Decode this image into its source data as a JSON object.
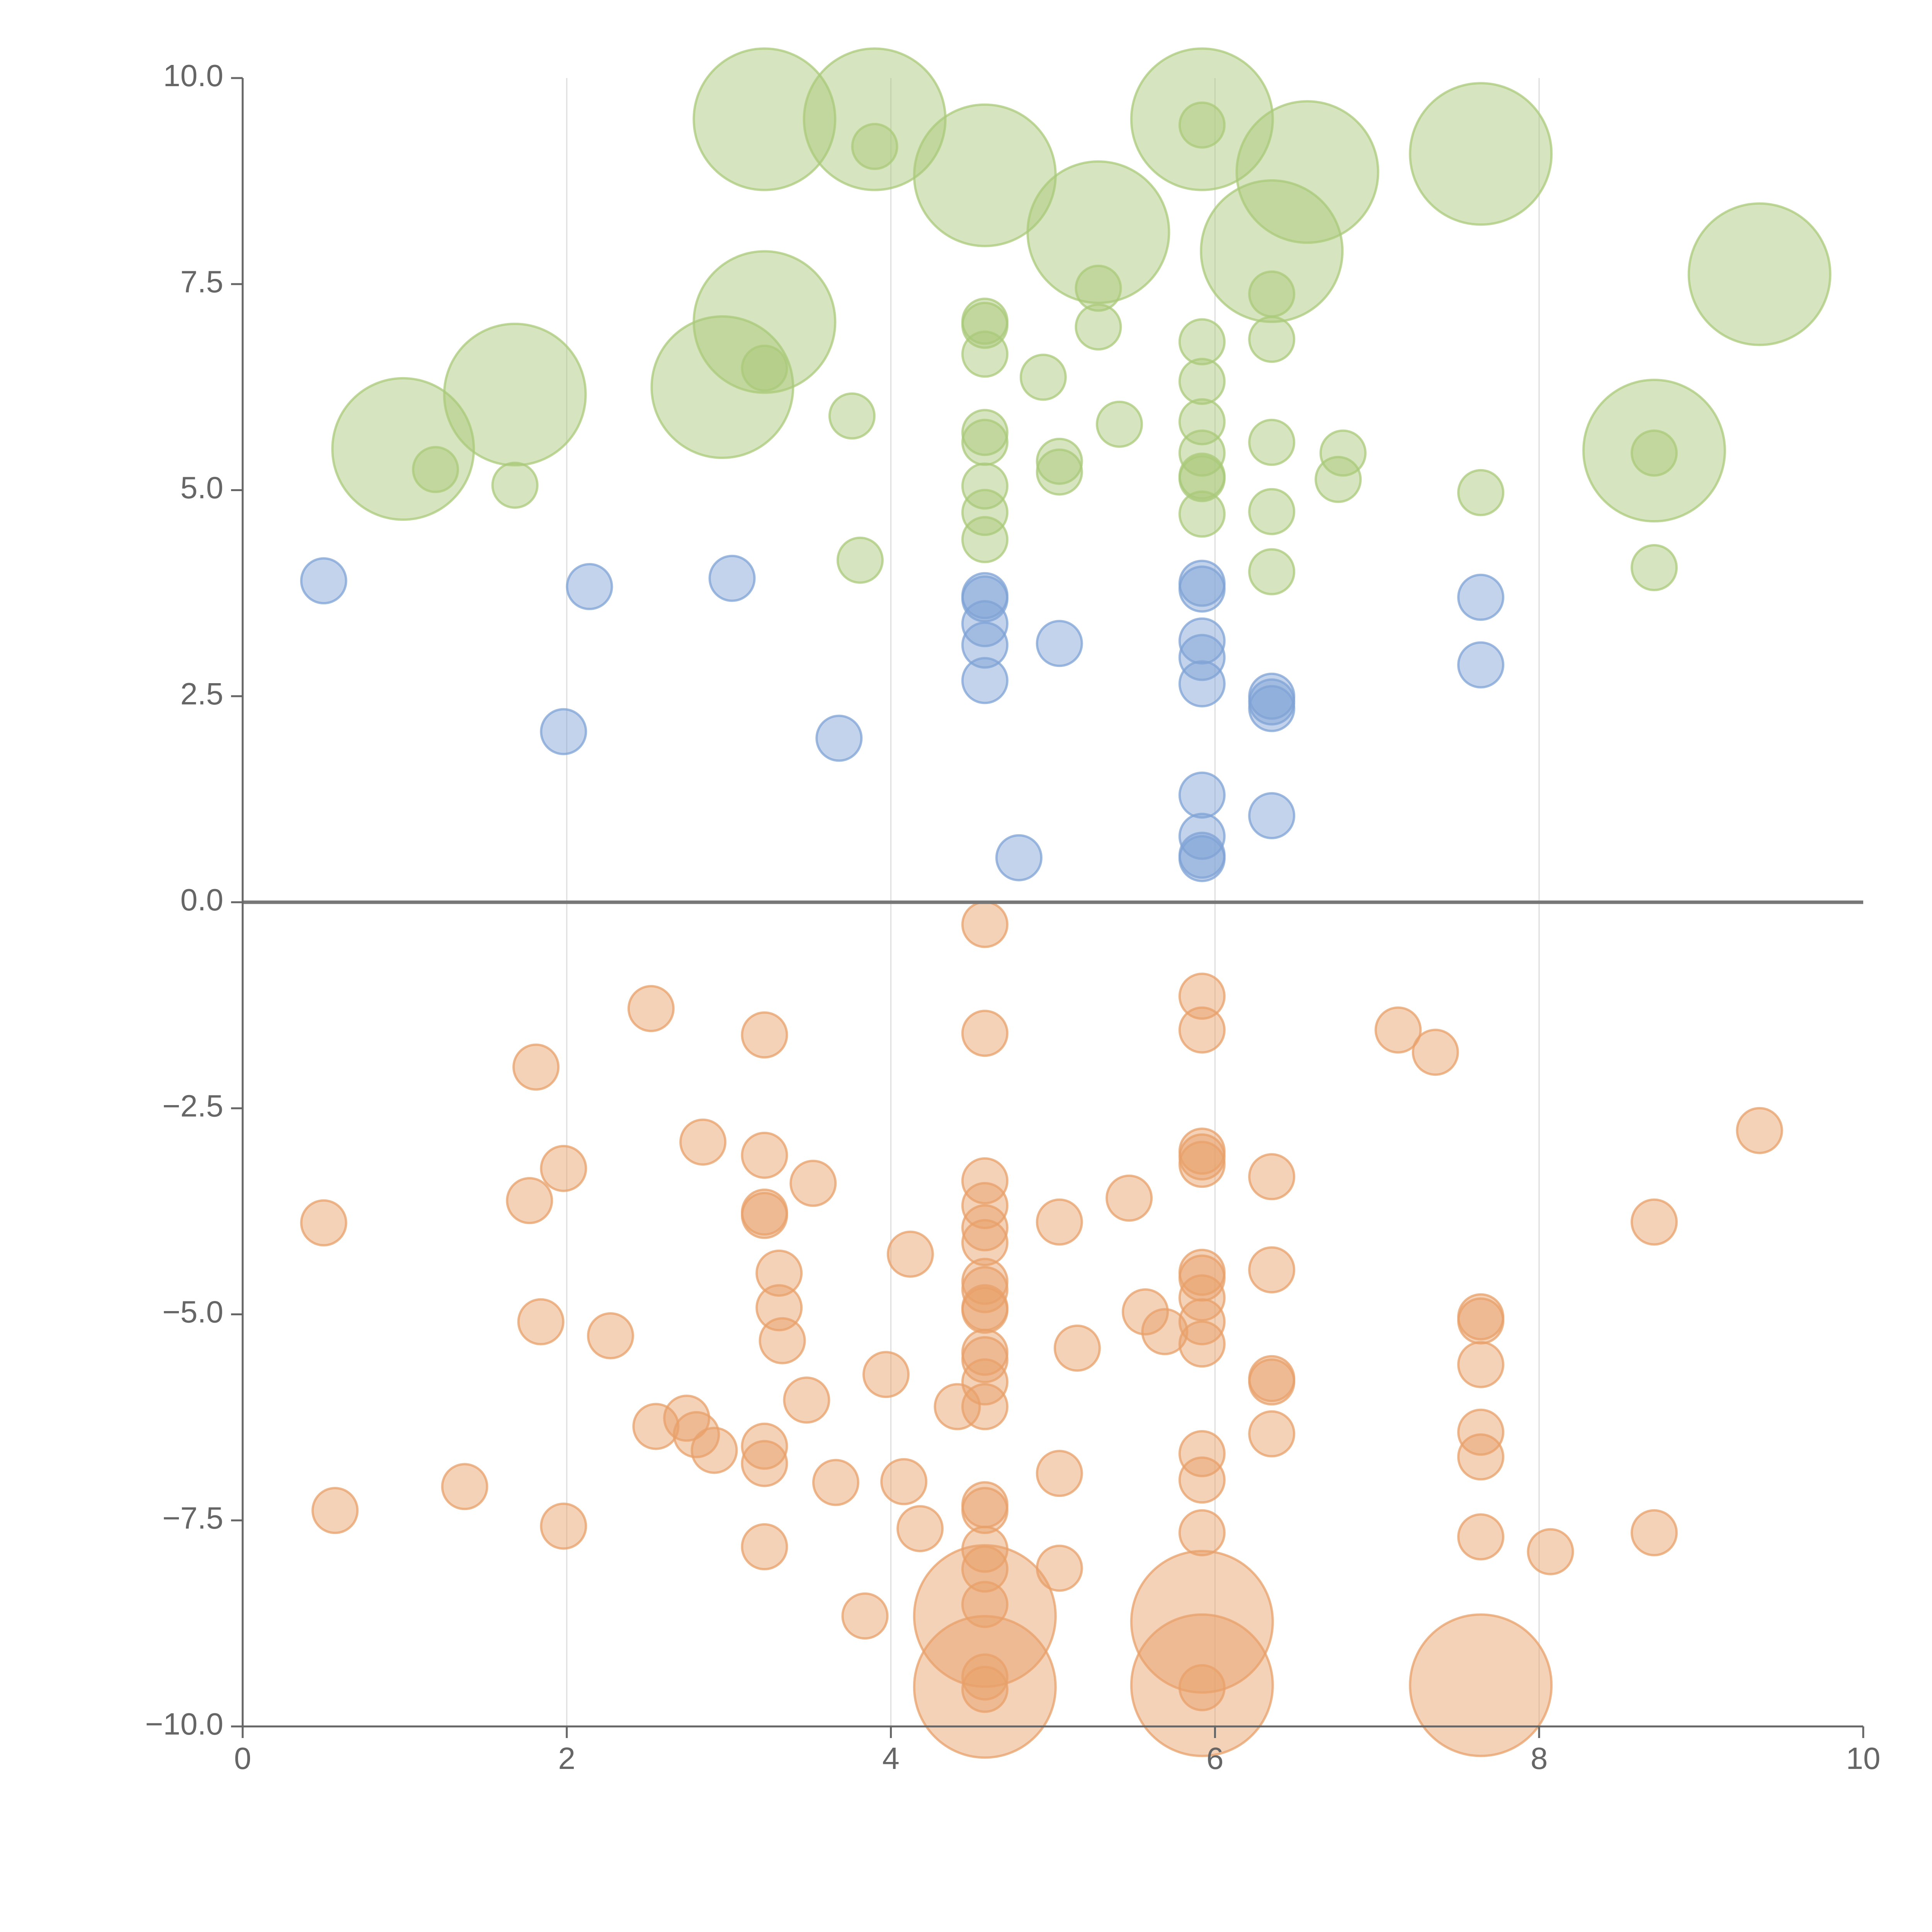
{
  "colors": {
    "blue": "#7fa3d6",
    "green": "#a9c97a",
    "orange": "#e8a06a",
    "axis": "#666666",
    "grid": "#dddddd",
    "zero_line": "#777777",
    "background": "#ffffff"
  },
  "chart_data": {
    "type": "scatter",
    "title": "",
    "xlabel": "",
    "ylabel": "",
    "xlim": [
      0,
      10
    ],
    "ylim": [
      -10,
      10
    ],
    "x_ticks": [
      "0",
      "2",
      "4",
      "6",
      "8",
      "10"
    ],
    "x_tick_values": [
      0,
      2,
      4,
      6,
      8,
      10
    ],
    "y_ticks": [
      "10.0",
      "7.5",
      "5.0",
      "2.5",
      "0.0",
      "−2.5",
      "−5.0",
      "−7.5",
      "−10.0"
    ],
    "y_tick_values": [
      10,
      7.5,
      5,
      2.5,
      0,
      -2.5,
      -5,
      -7.5,
      -10
    ],
    "grid": {
      "x": true,
      "y": false
    },
    "bubble_size": "radius",
    "series": [
      {
        "color": "blue",
        "points": [
          {
            "x": 0.5,
            "y": 3.9,
            "r": 1
          },
          {
            "x": 1.98,
            "y": 2.07,
            "r": 1
          },
          {
            "x": 2.14,
            "y": 3.83,
            "r": 1
          },
          {
            "x": 3.02,
            "y": 3.93,
            "r": 1
          },
          {
            "x": 3.68,
            "y": 1.99,
            "r": 1
          },
          {
            "x": 4.58,
            "y": 3.72,
            "r": 1
          },
          {
            "x": 4.58,
            "y": 3.68,
            "r": 1
          },
          {
            "x": 4.58,
            "y": 3.38,
            "r": 1
          },
          {
            "x": 4.58,
            "y": 3.12,
            "r": 1
          },
          {
            "x": 4.58,
            "y": 2.69,
            "r": 1
          },
          {
            "x": 4.79,
            "y": 0.54,
            "r": 1
          },
          {
            "x": 5.04,
            "y": 3.14,
            "r": 1
          },
          {
            "x": 5.92,
            "y": 3.87,
            "r": 1
          },
          {
            "x": 5.92,
            "y": 3.8,
            "r": 1
          },
          {
            "x": 5.92,
            "y": 3.17,
            "r": 1
          },
          {
            "x": 5.92,
            "y": 2.97,
            "r": 1
          },
          {
            "x": 5.92,
            "y": 2.65,
            "r": 1
          },
          {
            "x": 5.92,
            "y": 1.3,
            "r": 1
          },
          {
            "x": 5.92,
            "y": 0.8,
            "r": 1
          },
          {
            "x": 5.92,
            "y": 0.57,
            "r": 1
          },
          {
            "x": 5.92,
            "y": 0.53,
            "r": 1
          },
          {
            "x": 6.35,
            "y": 2.5,
            "r": 1
          },
          {
            "x": 6.35,
            "y": 2.43,
            "r": 1
          },
          {
            "x": 6.35,
            "y": 2.35,
            "r": 1
          },
          {
            "x": 6.35,
            "y": 1.05,
            "r": 1
          },
          {
            "x": 7.64,
            "y": 3.7,
            "r": 1
          },
          {
            "x": 7.64,
            "y": 2.88,
            "r": 1
          }
        ]
      },
      {
        "color": "green",
        "points": [
          {
            "x": 0.99,
            "y": 5.5,
            "r": 2
          },
          {
            "x": 1.19,
            "y": 5.25,
            "r": 1
          },
          {
            "x": 1.68,
            "y": 5.06,
            "r": 1
          },
          {
            "x": 1.68,
            "y": 6.16,
            "r": 2
          },
          {
            "x": 2.96,
            "y": 6.25,
            "r": 2
          },
          {
            "x": 3.22,
            "y": 9.5,
            "r": 2
          },
          {
            "x": 3.22,
            "y": 7.04,
            "r": 2
          },
          {
            "x": 3.22,
            "y": 6.48,
            "r": 1
          },
          {
            "x": 3.76,
            "y": 5.9,
            "r": 1
          },
          {
            "x": 3.81,
            "y": 4.15,
            "r": 1
          },
          {
            "x": 3.9,
            "y": 9.5,
            "r": 2
          },
          {
            "x": 3.9,
            "y": 9.17,
            "r": 1
          },
          {
            "x": 4.58,
            "y": 8.82,
            "r": 2
          },
          {
            "x": 4.58,
            "y": 7.05,
            "r": 1
          },
          {
            "x": 4.58,
            "y": 7.0,
            "r": 1
          },
          {
            "x": 4.58,
            "y": 6.65,
            "r": 1
          },
          {
            "x": 4.58,
            "y": 5.7,
            "r": 1
          },
          {
            "x": 4.58,
            "y": 5.58,
            "r": 1
          },
          {
            "x": 4.58,
            "y": 5.05,
            "r": 1
          },
          {
            "x": 4.58,
            "y": 4.73,
            "r": 1
          },
          {
            "x": 4.58,
            "y": 4.4,
            "r": 1
          },
          {
            "x": 4.94,
            "y": 6.37,
            "r": 1
          },
          {
            "x": 5.04,
            "y": 5.35,
            "r": 1
          },
          {
            "x": 5.04,
            "y": 5.22,
            "r": 1
          },
          {
            "x": 5.28,
            "y": 8.13,
            "r": 2
          },
          {
            "x": 5.28,
            "y": 7.45,
            "r": 1
          },
          {
            "x": 5.28,
            "y": 6.98,
            "r": 1
          },
          {
            "x": 5.41,
            "y": 5.8,
            "r": 1
          },
          {
            "x": 5.92,
            "y": 9.5,
            "r": 2
          },
          {
            "x": 5.92,
            "y": 9.43,
            "r": 1
          },
          {
            "x": 5.92,
            "y": 6.8,
            "r": 1
          },
          {
            "x": 5.92,
            "y": 6.32,
            "r": 1
          },
          {
            "x": 5.92,
            "y": 5.83,
            "r": 1
          },
          {
            "x": 5.92,
            "y": 5.45,
            "r": 1
          },
          {
            "x": 5.92,
            "y": 5.17,
            "r": 1
          },
          {
            "x": 5.92,
            "y": 5.14,
            "r": 1
          },
          {
            "x": 5.92,
            "y": 4.71,
            "r": 1
          },
          {
            "x": 6.35,
            "y": 7.9,
            "r": 2
          },
          {
            "x": 6.35,
            "y": 7.38,
            "r": 1
          },
          {
            "x": 6.35,
            "y": 6.83,
            "r": 1
          },
          {
            "x": 6.35,
            "y": 5.58,
            "r": 1
          },
          {
            "x": 6.35,
            "y": 4.74,
            "r": 1
          },
          {
            "x": 6.35,
            "y": 4.01,
            "r": 1
          },
          {
            "x": 6.57,
            "y": 8.86,
            "r": 2
          },
          {
            "x": 6.76,
            "y": 5.13,
            "r": 1
          },
          {
            "x": 6.79,
            "y": 5.45,
            "r": 1
          },
          {
            "x": 7.64,
            "y": 9.08,
            "r": 2
          },
          {
            "x": 7.64,
            "y": 4.97,
            "r": 1
          },
          {
            "x": 8.71,
            "y": 5.48,
            "r": 2
          },
          {
            "x": 8.71,
            "y": 5.45,
            "r": 1
          },
          {
            "x": 8.71,
            "y": 4.06,
            "r": 1
          },
          {
            "x": 9.36,
            "y": 7.62,
            "r": 2
          }
        ]
      },
      {
        "color": "orange",
        "points": [
          {
            "x": 0.5,
            "y": -3.89,
            "r": 1
          },
          {
            "x": 0.57,
            "y": -7.38,
            "r": 1
          },
          {
            "x": 1.37,
            "y": -7.09,
            "r": 1
          },
          {
            "x": 1.77,
            "y": -3.62,
            "r": 1
          },
          {
            "x": 1.81,
            "y": -2.0,
            "r": 1
          },
          {
            "x": 1.84,
            "y": -5.09,
            "r": 1
          },
          {
            "x": 1.98,
            "y": -3.23,
            "r": 1
          },
          {
            "x": 1.98,
            "y": -7.57,
            "r": 1
          },
          {
            "x": 2.27,
            "y": -5.26,
            "r": 1
          },
          {
            "x": 2.52,
            "y": -1.29,
            "r": 1
          },
          {
            "x": 2.55,
            "y": -6.36,
            "r": 1
          },
          {
            "x": 2.74,
            "y": -6.26,
            "r": 1
          },
          {
            "x": 2.8,
            "y": -6.46,
            "r": 1
          },
          {
            "x": 2.84,
            "y": -2.91,
            "r": 1
          },
          {
            "x": 2.91,
            "y": -6.65,
            "r": 1
          },
          {
            "x": 3.22,
            "y": -1.61,
            "r": 1
          },
          {
            "x": 3.22,
            "y": -3.07,
            "r": 1
          },
          {
            "x": 3.22,
            "y": -3.76,
            "r": 1
          },
          {
            "x": 3.22,
            "y": -3.8,
            "r": 1
          },
          {
            "x": 3.22,
            "y": -6.6,
            "r": 1
          },
          {
            "x": 3.22,
            "y": -6.81,
            "r": 1
          },
          {
            "x": 3.22,
            "y": -7.82,
            "r": 1
          },
          {
            "x": 3.31,
            "y": -4.5,
            "r": 1
          },
          {
            "x": 3.31,
            "y": -4.92,
            "r": 1
          },
          {
            "x": 3.33,
            "y": -5.32,
            "r": 1
          },
          {
            "x": 3.48,
            "y": -6.04,
            "r": 1
          },
          {
            "x": 3.52,
            "y": -3.41,
            "r": 1
          },
          {
            "x": 3.66,
            "y": -7.04,
            "r": 1
          },
          {
            "x": 3.84,
            "y": -8.66,
            "r": 1
          },
          {
            "x": 3.97,
            "y": -5.73,
            "r": 1
          },
          {
            "x": 4.08,
            "y": -7.03,
            "r": 1
          },
          {
            "x": 4.12,
            "y": -4.27,
            "r": 1
          },
          {
            "x": 4.18,
            "y": -7.6,
            "r": 1
          },
          {
            "x": 4.41,
            "y": -6.12,
            "r": 1
          },
          {
            "x": 4.58,
            "y": -0.27,
            "r": 1
          },
          {
            "x": 4.58,
            "y": -1.59,
            "r": 1
          },
          {
            "x": 4.58,
            "y": -3.38,
            "r": 1
          },
          {
            "x": 4.58,
            "y": -3.68,
            "r": 1
          },
          {
            "x": 4.58,
            "y": -3.95,
            "r": 1
          },
          {
            "x": 4.58,
            "y": -4.13,
            "r": 1
          },
          {
            "x": 4.58,
            "y": -4.6,
            "r": 1
          },
          {
            "x": 4.58,
            "y": -4.7,
            "r": 1
          },
          {
            "x": 4.58,
            "y": -4.92,
            "r": 1
          },
          {
            "x": 4.58,
            "y": -4.95,
            "r": 1
          },
          {
            "x": 4.58,
            "y": -5.46,
            "r": 1
          },
          {
            "x": 4.58,
            "y": -5.55,
            "r": 1
          },
          {
            "x": 4.58,
            "y": -5.82,
            "r": 1
          },
          {
            "x": 4.58,
            "y": -6.12,
            "r": 1
          },
          {
            "x": 4.58,
            "y": -7.31,
            "r": 1
          },
          {
            "x": 4.58,
            "y": -7.38,
            "r": 1
          },
          {
            "x": 4.58,
            "y": -7.85,
            "r": 1
          },
          {
            "x": 4.58,
            "y": -8.09,
            "r": 1
          },
          {
            "x": 4.58,
            "y": -8.52,
            "r": 1
          },
          {
            "x": 4.58,
            "y": -8.66,
            "r": 2
          },
          {
            "x": 4.58,
            "y": -9.4,
            "r": 1
          },
          {
            "x": 4.58,
            "y": -9.52,
            "r": 2
          },
          {
            "x": 4.58,
            "y": -9.55,
            "r": 1
          },
          {
            "x": 5.04,
            "y": -3.88,
            "r": 1
          },
          {
            "x": 5.04,
            "y": -6.93,
            "r": 1
          },
          {
            "x": 5.04,
            "y": -8.08,
            "r": 1
          },
          {
            "x": 5.15,
            "y": -5.41,
            "r": 1
          },
          {
            "x": 5.47,
            "y": -3.59,
            "r": 1
          },
          {
            "x": 5.57,
            "y": -4.97,
            "r": 1
          },
          {
            "x": 5.69,
            "y": -5.21,
            "r": 1
          },
          {
            "x": 5.92,
            "y": -1.14,
            "r": 1
          },
          {
            "x": 5.92,
            "y": -1.55,
            "r": 1
          },
          {
            "x": 5.92,
            "y": -3.02,
            "r": 1
          },
          {
            "x": 5.92,
            "y": -3.09,
            "r": 1
          },
          {
            "x": 5.92,
            "y": -3.18,
            "r": 1
          },
          {
            "x": 5.92,
            "y": -4.49,
            "r": 1
          },
          {
            "x": 5.92,
            "y": -4.56,
            "r": 1
          },
          {
            "x": 5.92,
            "y": -4.8,
            "r": 1
          },
          {
            "x": 5.92,
            "y": -5.09,
            "r": 1
          },
          {
            "x": 5.92,
            "y": -5.36,
            "r": 1
          },
          {
            "x": 5.92,
            "y": -6.69,
            "r": 1
          },
          {
            "x": 5.92,
            "y": -7.01,
            "r": 1
          },
          {
            "x": 5.92,
            "y": -7.65,
            "r": 1
          },
          {
            "x": 5.92,
            "y": -8.73,
            "r": 2
          },
          {
            "x": 5.92,
            "y": -9.5,
            "r": 2
          },
          {
            "x": 5.92,
            "y": -9.53,
            "r": 1
          },
          {
            "x": 6.35,
            "y": -3.33,
            "r": 1
          },
          {
            "x": 6.35,
            "y": -4.46,
            "r": 1
          },
          {
            "x": 6.35,
            "y": -5.78,
            "r": 1
          },
          {
            "x": 6.35,
            "y": -5.82,
            "r": 1
          },
          {
            "x": 6.35,
            "y": -6.45,
            "r": 1
          },
          {
            "x": 7.13,
            "y": -1.55,
            "r": 1
          },
          {
            "x": 7.36,
            "y": -1.82,
            "r": 1
          },
          {
            "x": 7.64,
            "y": -5.03,
            "r": 1
          },
          {
            "x": 7.64,
            "y": -5.08,
            "r": 1
          },
          {
            "x": 7.64,
            "y": -5.61,
            "r": 1
          },
          {
            "x": 7.64,
            "y": -6.43,
            "r": 1
          },
          {
            "x": 7.64,
            "y": -6.73,
            "r": 1
          },
          {
            "x": 7.64,
            "y": -7.7,
            "r": 1
          },
          {
            "x": 7.64,
            "y": -9.5,
            "r": 2
          },
          {
            "x": 8.07,
            "y": -7.88,
            "r": 1
          },
          {
            "x": 8.71,
            "y": -3.88,
            "r": 1
          },
          {
            "x": 8.71,
            "y": -7.65,
            "r": 1
          },
          {
            "x": 9.36,
            "y": -2.77,
            "r": 1
          }
        ]
      }
    ]
  }
}
